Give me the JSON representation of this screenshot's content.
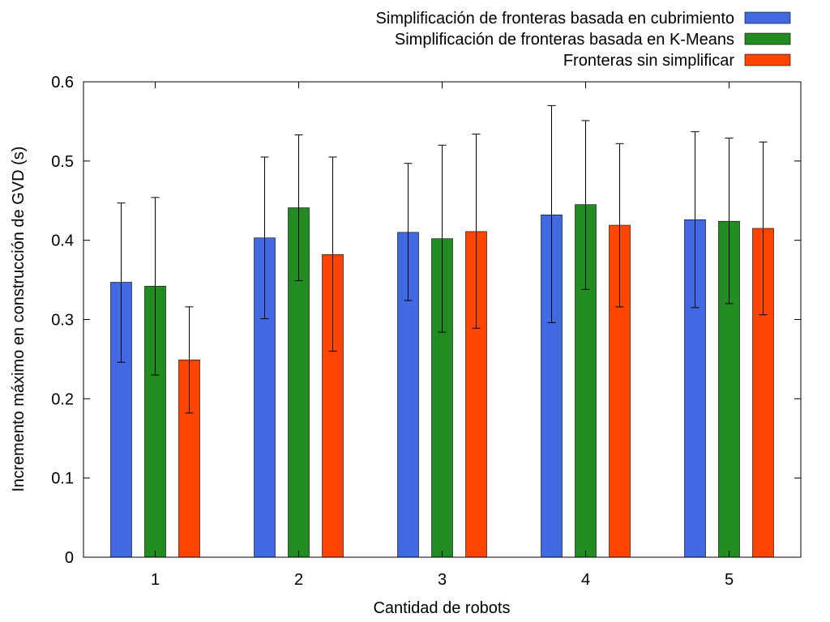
{
  "chart_data": {
    "type": "bar",
    "xlabel": "Cantidad de robots",
    "ylabel": "Incremento máximo en construcción de GVD (s)",
    "categories": [
      "1",
      "2",
      "3",
      "4",
      "5"
    ],
    "ylim": [
      0,
      0.6
    ],
    "yticks": [
      "0",
      "0.1",
      "0.2",
      "0.3",
      "0.4",
      "0.5",
      "0.6"
    ],
    "grid": false,
    "legend_position": "top-right",
    "series": [
      {
        "name": "Simplificación de fronteras basada en cubrimiento",
        "color": "#4169e1",
        "values": [
          0.347,
          0.403,
          0.41,
          0.432,
          0.426
        ],
        "err_low": [
          0.246,
          0.301,
          0.324,
          0.296,
          0.315
        ],
        "err_high": [
          0.447,
          0.505,
          0.497,
          0.57,
          0.537
        ]
      },
      {
        "name": "Simplificación de fronteras basada en K-Means",
        "color": "#228b22",
        "values": [
          0.342,
          0.441,
          0.402,
          0.445,
          0.424
        ],
        "err_low": [
          0.23,
          0.349,
          0.284,
          0.338,
          0.32
        ],
        "err_high": [
          0.454,
          0.533,
          0.52,
          0.551,
          0.529
        ]
      },
      {
        "name": "Fronteras sin simplificar",
        "color": "#ff4500",
        "values": [
          0.249,
          0.382,
          0.411,
          0.419,
          0.415
        ],
        "err_low": [
          0.182,
          0.26,
          0.289,
          0.316,
          0.306
        ],
        "err_high": [
          0.316,
          0.505,
          0.534,
          0.522,
          0.524
        ]
      }
    ]
  }
}
